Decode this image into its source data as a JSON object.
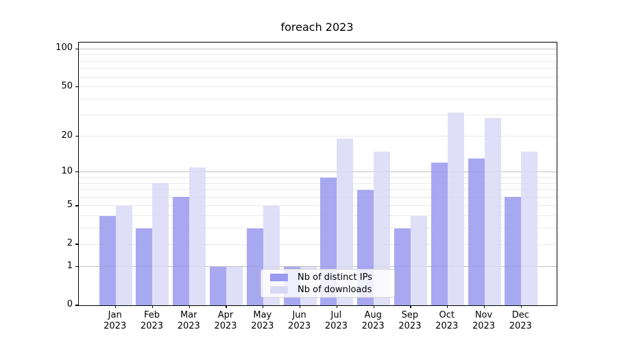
{
  "title": "foreach 2023",
  "chart_data": {
    "type": "bar",
    "title": "foreach 2023",
    "xlabel": "",
    "ylabel": "",
    "categories": [
      "Jan",
      "Feb",
      "Mar",
      "Apr",
      "May",
      "Jun",
      "Jul",
      "Aug",
      "Sep",
      "Oct",
      "Nov",
      "Dec"
    ],
    "year_label": "2023",
    "series": [
      {
        "name": "Nb of distinct IPs",
        "color": "#9999ee",
        "values": [
          4,
          3,
          6,
          1,
          3,
          1,
          9,
          7,
          3,
          12,
          13,
          6
        ]
      },
      {
        "name": "Nb of downloads",
        "color": "#d9d9f6",
        "values": [
          5,
          8,
          11,
          1,
          5,
          1,
          19,
          15,
          4,
          31,
          28,
          15
        ]
      }
    ],
    "y_scale": "log10(1+x)",
    "ylim": [
      0,
      113
    ],
    "y_ticks": [
      0,
      1,
      2,
      5,
      10,
      20,
      50,
      100
    ],
    "y_major_gridlines": [
      1,
      10,
      100
    ],
    "y_minor_gridlines": [
      2,
      3,
      4,
      5,
      6,
      7,
      8,
      9,
      20,
      30,
      40,
      50,
      60,
      70,
      80,
      90
    ],
    "grid": true,
    "legend_position": "lower center"
  },
  "colors": {
    "bar_dark": "#9999ee",
    "bar_light": "#d9d9f6",
    "grid_major": "#c2c2c2",
    "grid_minor": "#e9e9e9",
    "background": "#ffffff",
    "spine": "#000000"
  }
}
